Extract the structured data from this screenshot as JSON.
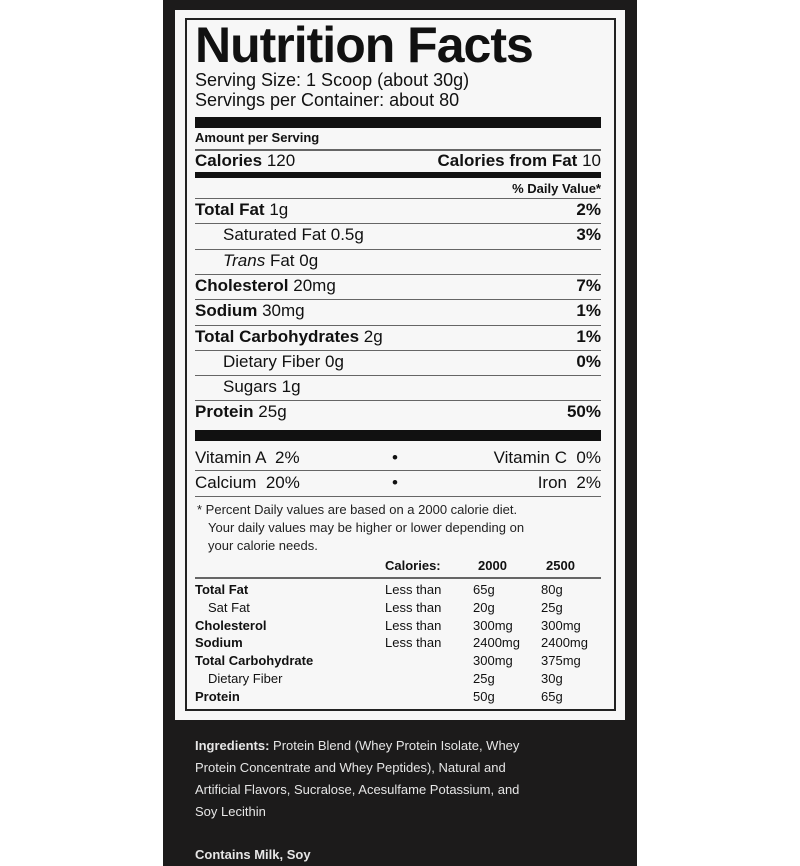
{
  "title": "Nutrition Facts",
  "serving_size": "Serving Size: 1 Scoop (about 30g)",
  "servings_per_container": "Servings per Container: about 80",
  "amount_per_serving": "Amount per Serving",
  "calories": {
    "label": "Calories",
    "value": "120",
    "fat_label": "Calories from Fat",
    "fat_value": "10"
  },
  "daily_value_header": "% Daily Value*",
  "nutrients": [
    {
      "name": "Total Fat",
      "amount": "1g",
      "dv": "2%",
      "bold": true
    },
    {
      "name": "Saturated Fat",
      "amount": "0.5g",
      "dv": "3%",
      "bold": false
    },
    {
      "name": "Trans",
      "name2": "Fat",
      "amount": "0g",
      "dv": "",
      "bold": false
    },
    {
      "name": "Cholesterol",
      "amount": "20mg",
      "dv": "7%",
      "bold": true
    },
    {
      "name": "Sodium",
      "amount": "30mg",
      "dv": "1%",
      "bold": true
    },
    {
      "name": "Total Carbohydrates",
      "amount": "2g",
      "dv": "1%",
      "bold": true
    },
    {
      "name": "Dietary Fiber",
      "amount": "0g",
      "dv": "0%",
      "bold": false
    },
    {
      "name": "Sugars",
      "amount": "1g",
      "dv": "",
      "bold": false
    },
    {
      "name": "Protein",
      "amount": "25g",
      "dv": "50%",
      "bold": true
    }
  ],
  "vitamins": [
    {
      "left": "Vitamin A  2%",
      "right": "Vitamin C  0%"
    },
    {
      "left": "Calcium  20%",
      "right": "Iron  2%"
    }
  ],
  "bullet": "•",
  "footnote": [
    "* Percent Daily values are based on a 2000 calorie diet.",
    "Your daily values may be higher or lower depending on",
    "your calorie needs."
  ],
  "dv_table": {
    "header": {
      "label": "Calories:",
      "c1": "2000",
      "c2": "2500"
    },
    "rows": [
      {
        "name": "Total Fat",
        "limit": "Less than",
        "c1": "65g",
        "c2": "80g"
      },
      {
        "name": "Sat Fat",
        "limit": "Less than",
        "c1": "20g",
        "c2": "25g"
      },
      {
        "name": "Cholesterol",
        "limit": "Less than",
        "c1": "300mg",
        "c2": "300mg"
      },
      {
        "name": "Sodium",
        "limit": "Less than",
        "c1": "2400mg",
        "c2": "2400mg"
      },
      {
        "name": "Total Carbohydrate",
        "limit": "",
        "c1": "300mg",
        "c2": "375mg"
      },
      {
        "name": "Dietary Fiber",
        "limit": "",
        "c1": "25g",
        "c2": "30g"
      },
      {
        "name": "Protein",
        "limit": "",
        "c1": "50g",
        "c2": "65g"
      }
    ]
  },
  "ingredients": {
    "label": "Ingredients:",
    "lines": [
      " Protein Blend (Whey Protein Isolate, Whey",
      "Protein Concentrate and Whey Peptides), Natural and",
      "Artificial Flavors, Sucralose, Acesulfame Potassium, and",
      "Soy Lecithin"
    ]
  },
  "allergens": "Contains Milk, Soy"
}
